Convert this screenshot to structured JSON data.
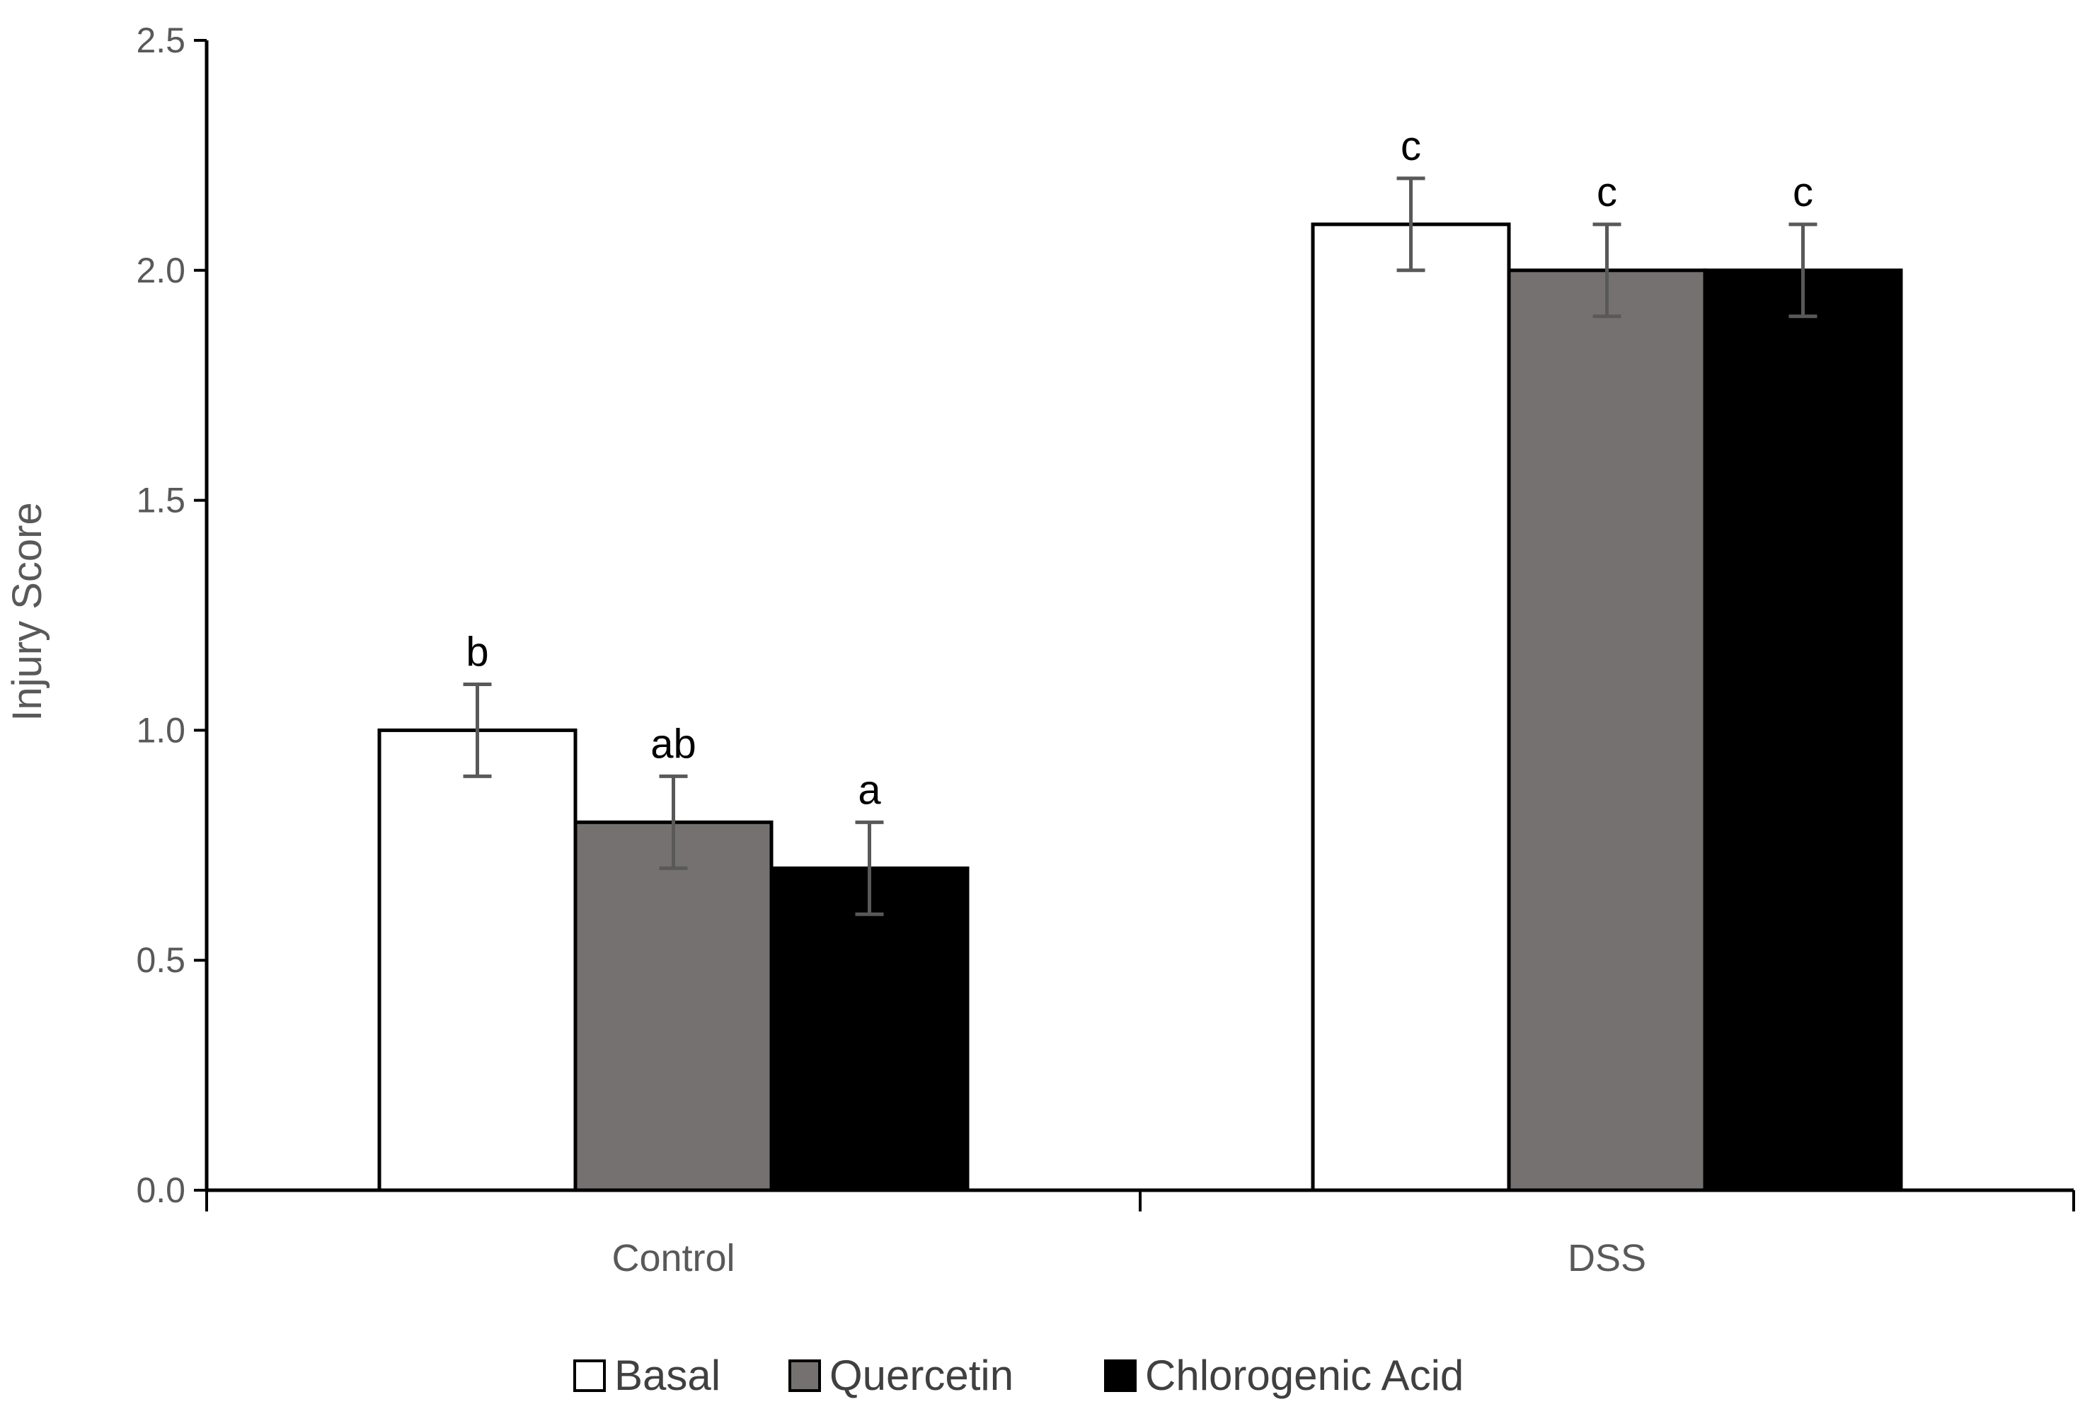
{
  "chart_data": {
    "type": "bar",
    "categories": [
      "Control",
      "DSS"
    ],
    "series": [
      {
        "name": "Basal",
        "color": "#ffffff",
        "values": [
          1.0,
          2.1
        ],
        "errors": [
          0.1,
          0.1
        ],
        "labels": [
          "b",
          "c"
        ]
      },
      {
        "name": "Quercetin",
        "color": "#767171",
        "values": [
          0.8,
          2.0
        ],
        "errors": [
          0.1,
          0.1
        ],
        "labels": [
          "ab",
          "c"
        ]
      },
      {
        "name": "Chlorogenic Acid",
        "color": "#000000",
        "values": [
          0.7,
          2.0
        ],
        "errors": [
          0.1,
          0.1
        ],
        "labels": [
          "a",
          "c"
        ]
      }
    ],
    "title": "",
    "xlabel": "",
    "ylabel": "Injury Score",
    "ylim": [
      0,
      2.5
    ],
    "yticks": [
      "0.0",
      "0.5",
      "1.0",
      "1.5",
      "2.0",
      "2.5"
    ],
    "grid": false,
    "legend_position": "bottom"
  }
}
